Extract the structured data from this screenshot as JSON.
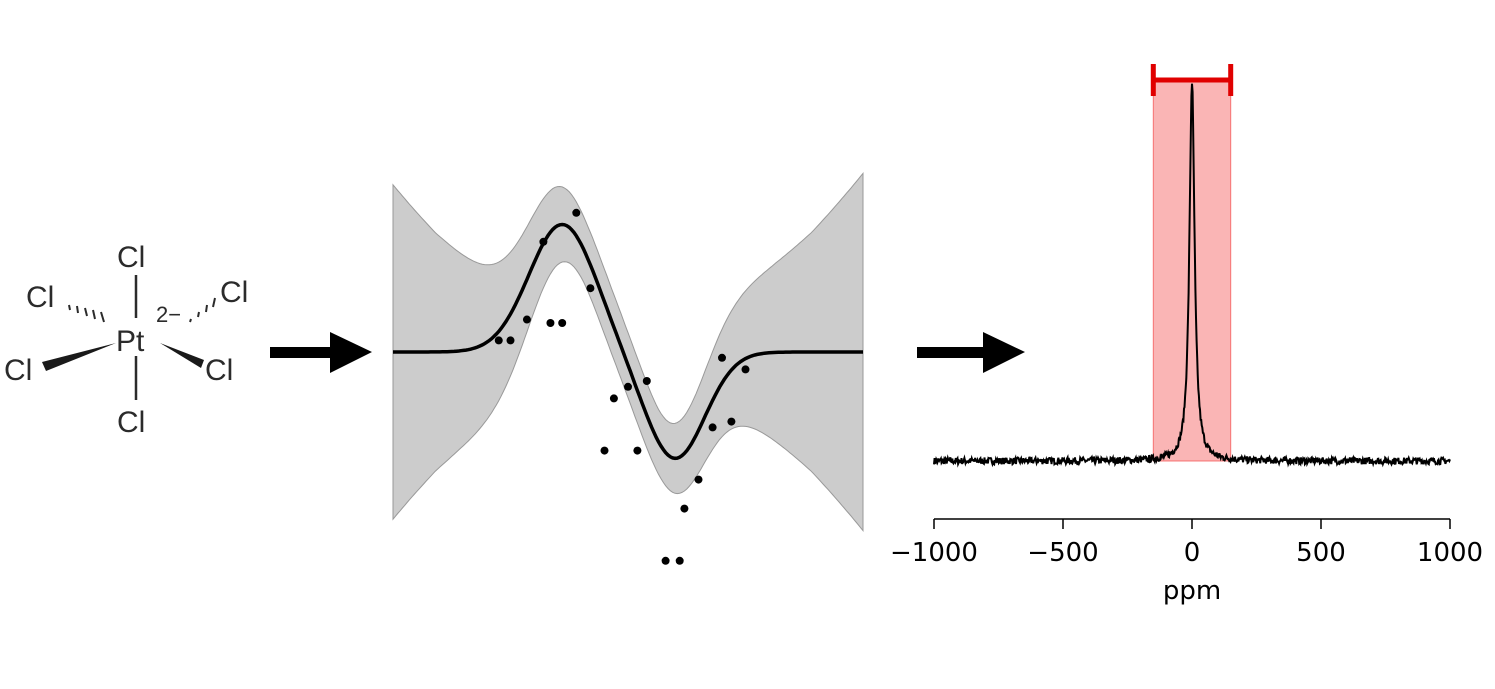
{
  "molecule": {
    "center_atom": "Pt",
    "charge": "2−",
    "ligands": [
      "Cl",
      "Cl",
      "Cl",
      "Cl",
      "Cl",
      "Cl"
    ]
  },
  "gp_panel": {
    "observations": [
      {
        "x": -0.55,
        "y": 0.1
      },
      {
        "x": -0.5,
        "y": 0.1
      },
      {
        "x": -0.43,
        "y": 0.28
      },
      {
        "x": -0.36,
        "y": 0.95
      },
      {
        "x": -0.33,
        "y": 0.25
      },
      {
        "x": -0.28,
        "y": 0.25
      },
      {
        "x": -0.22,
        "y": 1.2
      },
      {
        "x": -0.16,
        "y": 0.55
      },
      {
        "x": -0.1,
        "y": -0.85
      },
      {
        "x": -0.06,
        "y": -0.4
      },
      {
        "x": 0.0,
        "y": -0.3
      },
      {
        "x": 0.04,
        "y": -0.85
      },
      {
        "x": 0.08,
        "y": -0.25
      },
      {
        "x": 0.16,
        "y": -1.8
      },
      {
        "x": 0.22,
        "y": -1.8
      },
      {
        "x": 0.24,
        "y": -1.35
      },
      {
        "x": 0.3,
        "y": -1.1
      },
      {
        "x": 0.36,
        "y": -0.65
      },
      {
        "x": 0.4,
        "y": -0.05
      },
      {
        "x": 0.44,
        "y": -0.6
      },
      {
        "x": 0.5,
        "y": -0.15
      }
    ],
    "mean_color": "#000000",
    "band_color": "#cccccc"
  },
  "chart_data": {
    "type": "line",
    "xlabel": "ppm",
    "ylabel": "",
    "xlim": [
      -1000,
      1000
    ],
    "xticks": [
      -1000,
      -500,
      0,
      500,
      1000
    ],
    "xtick_labels": [
      "−1000",
      "−500",
      "0",
      "500",
      "1000"
    ],
    "series": [
      {
        "x": [
          -1000,
          -800,
          -600,
          -400,
          -300,
          -200,
          -150,
          -100,
          -60,
          -40,
          -20,
          -10,
          0,
          10,
          20,
          40,
          60,
          100,
          150,
          200,
          300,
          400,
          600,
          800,
          1000
        ],
        "y": [
          0.0,
          0.0,
          0.01,
          0.01,
          0.02,
          0.03,
          0.04,
          0.06,
          0.1,
          0.16,
          0.35,
          0.62,
          1.0,
          0.62,
          0.35,
          0.16,
          0.1,
          0.06,
          0.04,
          0.03,
          0.02,
          0.01,
          0.01,
          0.0,
          0.0
        ]
      }
    ],
    "highlight_band": {
      "x_from": -150,
      "x_to": 150,
      "color": "#f55a5a",
      "bracket_color": "#e00000"
    },
    "grid": false,
    "line_color": "#000000"
  }
}
